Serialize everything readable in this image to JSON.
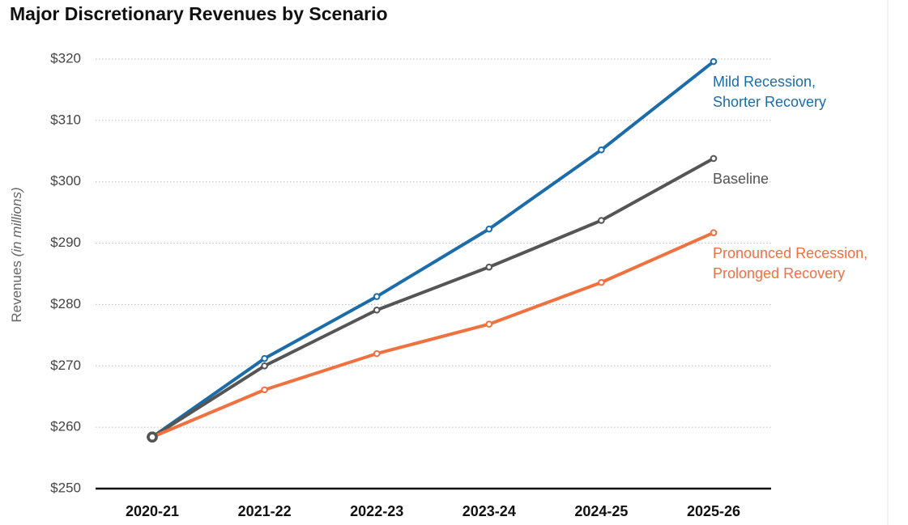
{
  "chart_data": {
    "type": "line",
    "title": "Major Discretionary Revenues by Scenario",
    "y_label": "Revenues",
    "y_label_note": "(in millions)",
    "categories": [
      "2020-21",
      "2021-22",
      "2022-23",
      "2023-24",
      "2024-25",
      "2025-26"
    ],
    "series": [
      {
        "name": "Mild Recession,\nShorter Recovery",
        "color": "#1b6ca8",
        "values": [
          258.4,
          271.2,
          281.3,
          292.3,
          305.2,
          319.6
        ]
      },
      {
        "name": "Baseline",
        "color": "#555555",
        "values": [
          258.4,
          270.0,
          279.1,
          286.1,
          293.7,
          303.8
        ]
      },
      {
        "name": "Pronounced Recession,\nProlonged Recovery",
        "color": "#f0703e",
        "values": [
          258.4,
          266.1,
          272.0,
          276.8,
          283.6,
          291.7
        ]
      }
    ],
    "ylim": [
      250,
      320
    ],
    "yticks": [
      {
        "value": 250,
        "label": "$250"
      },
      {
        "value": 260,
        "label": "$260"
      },
      {
        "value": 270,
        "label": "$270"
      },
      {
        "value": 280,
        "label": "$280"
      },
      {
        "value": 290,
        "label": "$290"
      },
      {
        "value": 300,
        "label": "$300"
      },
      {
        "value": 310,
        "label": "$310"
      },
      {
        "value": 320,
        "label": "$320"
      }
    ],
    "grid": true
  }
}
